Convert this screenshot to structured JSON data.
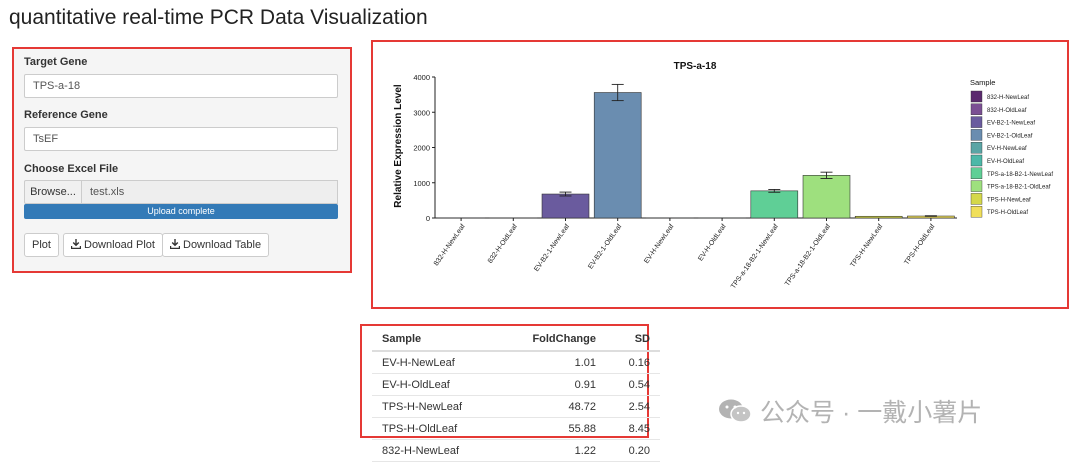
{
  "page_title": "quantitative real-time PCR Data Visualization",
  "sidebar": {
    "target_gene_label": "Target Gene",
    "target_gene_value": "TPS-a-18",
    "reference_gene_label": "Reference Gene",
    "reference_gene_value": "TsEF",
    "file_label": "Choose Excel File",
    "browse_label": "Browse...",
    "file_name": "test.xls",
    "upload_status": "Upload complete",
    "upload_progress_percent": 100,
    "buttons": {
      "plot": "Plot",
      "download_plot": "Download Plot",
      "download_table": "Download Table"
    }
  },
  "chart_data": {
    "type": "bar",
    "title": "TPS-a-18",
    "xlabel": "",
    "ylabel": "Relative Expression Level",
    "ylim": [
      0,
      4000
    ],
    "yticks": [
      0,
      1000,
      2000,
      3000,
      4000
    ],
    "grid": false,
    "legend_title": "Sample",
    "legend_position": "right",
    "categories": [
      "832-H-NewLeaf",
      "832-H-OldLeaf",
      "EV-B2-1-NewLeaf",
      "EV-B2-1-OldLeaf",
      "EV-H-NewLeaf",
      "EV-H-OldLeaf",
      "TPS-a-18-B2-1-NewLeaf",
      "TPS-a-18-B2-1-OldLeaf",
      "TPS-H-NewLeaf",
      "TPS-H-OldLeaf"
    ],
    "values": [
      1.22,
      2,
      680,
      3560,
      1.01,
      0.91,
      770,
      1210,
      48.72,
      55.88
    ],
    "errors": [
      0.2,
      0.5,
      55,
      230,
      0.16,
      0.54,
      40,
      90,
      2.54,
      8.45
    ],
    "colors": [
      "#5b2a6e",
      "#7b4f93",
      "#6a5b9e",
      "#6a8db0",
      "#5aa5a5",
      "#4cb8a8",
      "#5fcf96",
      "#9ee07e",
      "#d4d84a",
      "#f0df5a"
    ]
  },
  "table": {
    "headers": [
      "Sample",
      "FoldChange",
      "SD"
    ],
    "rows": [
      [
        "EV-H-NewLeaf",
        "1.01",
        "0.16"
      ],
      [
        "EV-H-OldLeaf",
        "0.91",
        "0.54"
      ],
      [
        "TPS-H-NewLeaf",
        "48.72",
        "2.54"
      ],
      [
        "TPS-H-OldLeaf",
        "55.88",
        "8.45"
      ],
      [
        "832-H-NewLeaf",
        "1.22",
        "0.20"
      ]
    ]
  },
  "watermark": "公众号 · 一戴小薯片",
  "icons": {
    "download": "download-icon",
    "wechat": "wechat-icon"
  }
}
